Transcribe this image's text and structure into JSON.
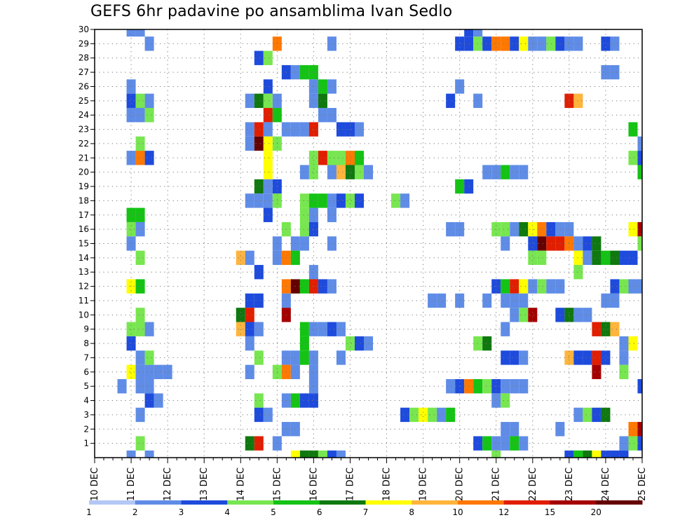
{
  "chart_data": {
    "type": "heatmap",
    "title": "GEFS 6hr padavine po ansamblima Ivan Sedlo",
    "xlabel": "",
    "ylabel": "",
    "x_ticks": [
      "10 DEC",
      "11 DEC",
      "12 DEC",
      "13 DEC",
      "14 DEC",
      "15 DEC",
      "16 DEC",
      "17 DEC",
      "18 DEC",
      "19 DEC",
      "20 DEC",
      "21 DEC",
      "22 DEC",
      "23 DEC",
      "24 DEC",
      "25 DEC"
    ],
    "y_ticks": [
      1,
      2,
      3,
      4,
      5,
      6,
      7,
      8,
      9,
      10,
      11,
      12,
      13,
      14,
      15,
      16,
      17,
      18,
      19,
      20,
      21,
      22,
      23,
      24,
      25,
      26,
      27,
      28,
      29,
      30
    ],
    "time_step_hours": 6,
    "steps_per_day": 4,
    "xlim": [
      0,
      60
    ],
    "ylim": [
      0,
      30
    ],
    "grid": true,
    "color_levels": [
      1,
      2,
      3,
      4,
      5,
      6,
      7,
      8,
      10,
      12,
      15,
      20
    ],
    "color_level_labels": [
      "1",
      "2",
      "3",
      "4",
      "5",
      "6",
      "7",
      "8",
      "10",
      "12",
      "15",
      "20"
    ],
    "colors": [
      "#b4c8f5",
      "#5f8ce6",
      "#1e4bdc",
      "#78e650",
      "#14c314",
      "#0f780f",
      "#ffff00",
      "#ffb43c",
      "#ff7800",
      "#e11e00",
      "#a50000",
      "#640000"
    ],
    "cells": [
      [
        4,
        30,
        1
      ],
      [
        5,
        30,
        1
      ],
      [
        6,
        29,
        1
      ],
      [
        20,
        29,
        8
      ],
      [
        26,
        29,
        1
      ],
      [
        40,
        29,
        2
      ],
      [
        41,
        29,
        2
      ],
      [
        42,
        29,
        3
      ],
      [
        43,
        29,
        2
      ],
      [
        44,
        29,
        8
      ],
      [
        45,
        29,
        8
      ],
      [
        46,
        29,
        2
      ],
      [
        47,
        29,
        6
      ],
      [
        48,
        29,
        1
      ],
      [
        49,
        29,
        1
      ],
      [
        50,
        29,
        3
      ],
      [
        51,
        29,
        2
      ],
      [
        52,
        29,
        1
      ],
      [
        53,
        29,
        1
      ],
      [
        56,
        29,
        2
      ],
      [
        57,
        29,
        1
      ],
      [
        41,
        30,
        2
      ],
      [
        42,
        30,
        1
      ],
      [
        18,
        28,
        2
      ],
      [
        19,
        28,
        3
      ],
      [
        21,
        27,
        2
      ],
      [
        22,
        27,
        1
      ],
      [
        23,
        27,
        4
      ],
      [
        24,
        27,
        4
      ],
      [
        56,
        27,
        1
      ],
      [
        57,
        27,
        1
      ],
      [
        4,
        26,
        1
      ],
      [
        19,
        26,
        2
      ],
      [
        24,
        26,
        1
      ],
      [
        25,
        26,
        4
      ],
      [
        26,
        26,
        1
      ],
      [
        40,
        26,
        1
      ],
      [
        4,
        25,
        2
      ],
      [
        5,
        25,
        3
      ],
      [
        6,
        25,
        1
      ],
      [
        17,
        25,
        1
      ],
      [
        18,
        25,
        5
      ],
      [
        19,
        25,
        3
      ],
      [
        20,
        25,
        1
      ],
      [
        24,
        25,
        1
      ],
      [
        25,
        25,
        5
      ],
      [
        39,
        25,
        2
      ],
      [
        42,
        25,
        1
      ],
      [
        52,
        25,
        9
      ],
      [
        53,
        25,
        7
      ],
      [
        4,
        24,
        1
      ],
      [
        5,
        24,
        1
      ],
      [
        6,
        24,
        3
      ],
      [
        19,
        24,
        9
      ],
      [
        20,
        24,
        4
      ],
      [
        25,
        24,
        1
      ],
      [
        26,
        24,
        1
      ],
      [
        17,
        23,
        1
      ],
      [
        18,
        23,
        9
      ],
      [
        19,
        23,
        1
      ],
      [
        21,
        23,
        1
      ],
      [
        22,
        23,
        1
      ],
      [
        23,
        23,
        1
      ],
      [
        24,
        23,
        9
      ],
      [
        27,
        23,
        2
      ],
      [
        28,
        23,
        2
      ],
      [
        29,
        23,
        1
      ],
      [
        59,
        23,
        4
      ],
      [
        5,
        22,
        3
      ],
      [
        17,
        22,
        1
      ],
      [
        18,
        22,
        11
      ],
      [
        19,
        22,
        6
      ],
      [
        20,
        22,
        3
      ],
      [
        60,
        22,
        1
      ],
      [
        4,
        21,
        1
      ],
      [
        5,
        21,
        8
      ],
      [
        6,
        21,
        2
      ],
      [
        19,
        21,
        6
      ],
      [
        24,
        21,
        3
      ],
      [
        25,
        21,
        9
      ],
      [
        26,
        21,
        3
      ],
      [
        27,
        21,
        3
      ],
      [
        28,
        21,
        8
      ],
      [
        29,
        21,
        4
      ],
      [
        59,
        21,
        3
      ],
      [
        60,
        21,
        2
      ],
      [
        19,
        20,
        6
      ],
      [
        23,
        20,
        1
      ],
      [
        24,
        20,
        3
      ],
      [
        26,
        20,
        1
      ],
      [
        27,
        20,
        7
      ],
      [
        28,
        20,
        5
      ],
      [
        29,
        20,
        3
      ],
      [
        30,
        20,
        1
      ],
      [
        43,
        20,
        1
      ],
      [
        44,
        20,
        1
      ],
      [
        45,
        20,
        4
      ],
      [
        46,
        20,
        1
      ],
      [
        47,
        20,
        1
      ],
      [
        60,
        20,
        4
      ],
      [
        18,
        19,
        5
      ],
      [
        19,
        19,
        1
      ],
      [
        20,
        19,
        2
      ],
      [
        40,
        19,
        4
      ],
      [
        41,
        19,
        2
      ],
      [
        17,
        18,
        1
      ],
      [
        18,
        18,
        1
      ],
      [
        19,
        18,
        1
      ],
      [
        20,
        18,
        3
      ],
      [
        23,
        18,
        3
      ],
      [
        24,
        18,
        4
      ],
      [
        25,
        18,
        4
      ],
      [
        26,
        18,
        1
      ],
      [
        27,
        18,
        2
      ],
      [
        28,
        18,
        3
      ],
      [
        29,
        18,
        2
      ],
      [
        33,
        18,
        3
      ],
      [
        34,
        18,
        1
      ],
      [
        4,
        17,
        4
      ],
      [
        5,
        17,
        4
      ],
      [
        19,
        17,
        2
      ],
      [
        23,
        17,
        3
      ],
      [
        24,
        17,
        1
      ],
      [
        26,
        17,
        1
      ],
      [
        4,
        16,
        3
      ],
      [
        5,
        16,
        1
      ],
      [
        21,
        16,
        3
      ],
      [
        23,
        16,
        3
      ],
      [
        24,
        16,
        2
      ],
      [
        39,
        16,
        1
      ],
      [
        40,
        16,
        1
      ],
      [
        44,
        16,
        3
      ],
      [
        45,
        16,
        3
      ],
      [
        46,
        16,
        1
      ],
      [
        47,
        16,
        5
      ],
      [
        48,
        16,
        6
      ],
      [
        49,
        16,
        8
      ],
      [
        50,
        16,
        2
      ],
      [
        51,
        16,
        1
      ],
      [
        52,
        16,
        1
      ],
      [
        59,
        16,
        6
      ],
      [
        60,
        16,
        10
      ],
      [
        4,
        15,
        1
      ],
      [
        20,
        15,
        1
      ],
      [
        22,
        15,
        1
      ],
      [
        23,
        15,
        1
      ],
      [
        26,
        15,
        1
      ],
      [
        45,
        15,
        1
      ],
      [
        48,
        15,
        2
      ],
      [
        49,
        15,
        11
      ],
      [
        50,
        15,
        9
      ],
      [
        51,
        15,
        9
      ],
      [
        52,
        15,
        8
      ],
      [
        53,
        15,
        1
      ],
      [
        54,
        15,
        2
      ],
      [
        55,
        15,
        5
      ],
      [
        60,
        15,
        3
      ],
      [
        5,
        14,
        3
      ],
      [
        16,
        14,
        7
      ],
      [
        17,
        14,
        1
      ],
      [
        20,
        14,
        1
      ],
      [
        21,
        14,
        8
      ],
      [
        22,
        14,
        4
      ],
      [
        48,
        14,
        3
      ],
      [
        49,
        14,
        3
      ],
      [
        53,
        14,
        6
      ],
      [
        54,
        14,
        1
      ],
      [
        55,
        14,
        5
      ],
      [
        56,
        14,
        4
      ],
      [
        57,
        14,
        5
      ],
      [
        58,
        14,
        2
      ],
      [
        59,
        14,
        2
      ],
      [
        18,
        13,
        2
      ],
      [
        24,
        13,
        1
      ],
      [
        53,
        13,
        3
      ],
      [
        4,
        12,
        6
      ],
      [
        5,
        12,
        4
      ],
      [
        21,
        12,
        8
      ],
      [
        22,
        12,
        11
      ],
      [
        23,
        12,
        4
      ],
      [
        24,
        12,
        9
      ],
      [
        25,
        12,
        2
      ],
      [
        26,
        12,
        1
      ],
      [
        44,
        12,
        2
      ],
      [
        45,
        12,
        4
      ],
      [
        46,
        12,
        9
      ],
      [
        47,
        12,
        6
      ],
      [
        48,
        12,
        1
      ],
      [
        49,
        12,
        3
      ],
      [
        50,
        12,
        1
      ],
      [
        51,
        12,
        1
      ],
      [
        57,
        12,
        2
      ],
      [
        58,
        12,
        3
      ],
      [
        59,
        12,
        1
      ],
      [
        60,
        12,
        1
      ],
      [
        17,
        11,
        2
      ],
      [
        18,
        11,
        2
      ],
      [
        21,
        11,
        1
      ],
      [
        37,
        11,
        1
      ],
      [
        38,
        11,
        1
      ],
      [
        40,
        11,
        1
      ],
      [
        43,
        11,
        1
      ],
      [
        45,
        11,
        1
      ],
      [
        46,
        11,
        1
      ],
      [
        47,
        11,
        1
      ],
      [
        56,
        11,
        1
      ],
      [
        57,
        11,
        1
      ],
      [
        5,
        10,
        3
      ],
      [
        16,
        10,
        5
      ],
      [
        17,
        10,
        9
      ],
      [
        21,
        10,
        10
      ],
      [
        46,
        10,
        1
      ],
      [
        47,
        10,
        3
      ],
      [
        48,
        10,
        10
      ],
      [
        51,
        10,
        2
      ],
      [
        52,
        10,
        5
      ],
      [
        53,
        10,
        1
      ],
      [
        54,
        10,
        1
      ],
      [
        4,
        9,
        3
      ],
      [
        5,
        9,
        3
      ],
      [
        6,
        9,
        1
      ],
      [
        16,
        9,
        7
      ],
      [
        17,
        9,
        2
      ],
      [
        18,
        9,
        1
      ],
      [
        23,
        9,
        4
      ],
      [
        24,
        9,
        1
      ],
      [
        25,
        9,
        1
      ],
      [
        26,
        9,
        2
      ],
      [
        27,
        9,
        1
      ],
      [
        45,
        9,
        1
      ],
      [
        55,
        9,
        9
      ],
      [
        56,
        9,
        5
      ],
      [
        57,
        9,
        7
      ],
      [
        4,
        8,
        2
      ],
      [
        17,
        8,
        1
      ],
      [
        23,
        8,
        4
      ],
      [
        28,
        8,
        3
      ],
      [
        29,
        8,
        2
      ],
      [
        30,
        8,
        1
      ],
      [
        42,
        8,
        3
      ],
      [
        43,
        8,
        5
      ],
      [
        58,
        8,
        1
      ],
      [
        59,
        8,
        6
      ],
      [
        5,
        7,
        1
      ],
      [
        6,
        7,
        3
      ],
      [
        18,
        7,
        3
      ],
      [
        21,
        7,
        1
      ],
      [
        22,
        7,
        1
      ],
      [
        23,
        7,
        4
      ],
      [
        24,
        7,
        1
      ],
      [
        27,
        7,
        1
      ],
      [
        45,
        7,
        2
      ],
      [
        46,
        7,
        2
      ],
      [
        47,
        7,
        1
      ],
      [
        52,
        7,
        7
      ],
      [
        53,
        7,
        2
      ],
      [
        54,
        7,
        2
      ],
      [
        55,
        7,
        9
      ],
      [
        56,
        7,
        2
      ],
      [
        58,
        7,
        1
      ],
      [
        4,
        6,
        6
      ],
      [
        5,
        6,
        1
      ],
      [
        6,
        6,
        1
      ],
      [
        7,
        6,
        1
      ],
      [
        8,
        6,
        1
      ],
      [
        17,
        6,
        1
      ],
      [
        20,
        6,
        3
      ],
      [
        21,
        6,
        8
      ],
      [
        22,
        6,
        1
      ],
      [
        24,
        6,
        1
      ],
      [
        55,
        6,
        10
      ],
      [
        58,
        6,
        3
      ],
      [
        3,
        5,
        1
      ],
      [
        5,
        5,
        1
      ],
      [
        6,
        5,
        1
      ],
      [
        24,
        5,
        1
      ],
      [
        39,
        5,
        1
      ],
      [
        40,
        5,
        2
      ],
      [
        41,
        5,
        8
      ],
      [
        42,
        5,
        4
      ],
      [
        43,
        5,
        3
      ],
      [
        44,
        5,
        2
      ],
      [
        45,
        5,
        1
      ],
      [
        46,
        5,
        1
      ],
      [
        47,
        5,
        1
      ],
      [
        60,
        5,
        2
      ],
      [
        6,
        4,
        2
      ],
      [
        7,
        4,
        1
      ],
      [
        18,
        4,
        3
      ],
      [
        21,
        4,
        1
      ],
      [
        22,
        4,
        4
      ],
      [
        23,
        4,
        2
      ],
      [
        24,
        4,
        2
      ],
      [
        44,
        4,
        1
      ],
      [
        45,
        4,
        3
      ],
      [
        5,
        3,
        1
      ],
      [
        18,
        3,
        2
      ],
      [
        19,
        3,
        1
      ],
      [
        34,
        3,
        2
      ],
      [
        35,
        3,
        3
      ],
      [
        36,
        3,
        6
      ],
      [
        37,
        3,
        3
      ],
      [
        38,
        3,
        1
      ],
      [
        39,
        3,
        4
      ],
      [
        53,
        3,
        1
      ],
      [
        54,
        3,
        3
      ],
      [
        55,
        3,
        2
      ],
      [
        56,
        3,
        5
      ],
      [
        21,
        2,
        1
      ],
      [
        22,
        2,
        1
      ],
      [
        45,
        2,
        1
      ],
      [
        46,
        2,
        1
      ],
      [
        51,
        2,
        1
      ],
      [
        59,
        2,
        8
      ],
      [
        60,
        2,
        10
      ],
      [
        5,
        1,
        3
      ],
      [
        17,
        1,
        5
      ],
      [
        18,
        1,
        9
      ],
      [
        20,
        1,
        1
      ],
      [
        42,
        1,
        2
      ],
      [
        43,
        1,
        4
      ],
      [
        44,
        1,
        1
      ],
      [
        45,
        1,
        1
      ],
      [
        46,
        1,
        4
      ],
      [
        47,
        1,
        1
      ],
      [
        58,
        1,
        1
      ],
      [
        59,
        1,
        3
      ],
      [
        60,
        1,
        2
      ],
      [
        4,
        0,
        1
      ],
      [
        6,
        0,
        1
      ],
      [
        22,
        0,
        6
      ],
      [
        23,
        0,
        5
      ],
      [
        24,
        0,
        5
      ],
      [
        25,
        0,
        3
      ],
      [
        26,
        0,
        2
      ],
      [
        27,
        0,
        1
      ],
      [
        44,
        0,
        3
      ],
      [
        52,
        0,
        2
      ],
      [
        53,
        0,
        4
      ],
      [
        54,
        0,
        5
      ],
      [
        55,
        0,
        6
      ],
      [
        56,
        0,
        2
      ],
      [
        57,
        0,
        2
      ],
      [
        58,
        0,
        2
      ]
    ]
  }
}
